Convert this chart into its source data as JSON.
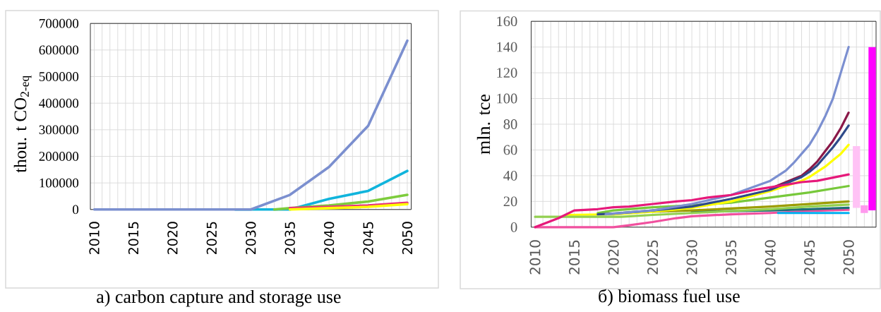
{
  "chart_data": [
    {
      "type": "line",
      "title": "a) carbon capture and storage use",
      "ylabel": "thou. t CO$_{2-eq}$",
      "xlim": [
        2009.5,
        2050.5
      ],
      "xticks": [
        2010,
        {
          "value": 2011,
          "label": null
        },
        {
          "value": 2012,
          "label": null
        },
        {
          "value": 2013,
          "label": null
        },
        {
          "value": 2014,
          "label": null
        },
        2015,
        {
          "value": 2016,
          "label": null
        },
        {
          "value": 2017,
          "label": null
        },
        {
          "value": 2018,
          "label": null
        },
        {
          "value": 2019,
          "label": null
        },
        2020,
        {
          "value": 2021,
          "label": null
        },
        {
          "value": 2022,
          "label": null
        },
        {
          "value": 2023,
          "label": null
        },
        {
          "value": 2024,
          "label": null
        },
        2025,
        {
          "value": 2026,
          "label": null
        },
        {
          "value": 2027,
          "label": null
        },
        {
          "value": 2028,
          "label": null
        },
        {
          "value": 2029,
          "label": null
        },
        2030,
        {
          "value": 2031,
          "label": null
        },
        {
          "value": 2032,
          "label": null
        },
        {
          "value": 2033,
          "label": null
        },
        {
          "value": 2034,
          "label": null
        },
        2035,
        {
          "value": 2036,
          "label": null
        },
        {
          "value": 2037,
          "label": null
        },
        {
          "value": 2038,
          "label": null
        },
        {
          "value": 2039,
          "label": null
        },
        2040,
        {
          "value": 2041,
          "label": null
        },
        {
          "value": 2042,
          "label": null
        },
        {
          "value": 2043,
          "label": null
        },
        {
          "value": 2044,
          "label": null
        },
        2045,
        {
          "value": 2046,
          "label": null
        },
        {
          "value": 2047,
          "label": null
        },
        {
          "value": 2048,
          "label": null
        },
        {
          "value": 2049,
          "label": null
        },
        2050
      ],
      "ylim": [
        0,
        700000
      ],
      "yticks": [
        0,
        100000,
        200000,
        300000,
        400000,
        500000,
        600000,
        700000
      ],
      "grid": true,
      "series": [
        {
          "color": "#10b4dc",
          "x": [
            2028,
            2030,
            2035,
            2040,
            2045,
            2050
          ],
          "values": [
            0,
            0,
            0,
            40000,
            70000,
            145000
          ]
        },
        {
          "color": "#7dcc3c",
          "x": [
            2033,
            2035,
            2040,
            2045,
            2050
          ],
          "values": [
            0,
            5000,
            15000,
            30000,
            55000
          ]
        },
        {
          "color": "#e8307a",
          "x": [
            2035,
            2040,
            2045,
            2050
          ],
          "values": [
            5000,
            10000,
            15000,
            25000
          ]
        },
        {
          "color": "#ffff00",
          "x": [
            2035,
            2040,
            2045,
            2050
          ],
          "values": [
            0,
            5000,
            10000,
            20000
          ]
        },
        {
          "color": "#7b8fcf",
          "x": [
            2010,
            2015,
            2020,
            2025,
            2030,
            2035,
            2040,
            2045,
            2050
          ],
          "values": [
            0,
            0,
            0,
            0,
            0,
            55000,
            160000,
            315000,
            635000
          ]
        }
      ]
    },
    {
      "type": "line",
      "title": "б) biomass fuel use",
      "ylabel": "mln. tce",
      "xlim": [
        2009.5,
        2053.5
      ],
      "xticks": [
        2010,
        {
          "value": 2011,
          "label": null
        },
        {
          "value": 2012,
          "label": null
        },
        {
          "value": 2013,
          "label": null
        },
        {
          "value": 2014,
          "label": null
        },
        2015,
        {
          "value": 2016,
          "label": null
        },
        {
          "value": 2017,
          "label": null
        },
        {
          "value": 2018,
          "label": null
        },
        {
          "value": 2019,
          "label": null
        },
        2020,
        {
          "value": 2021,
          "label": null
        },
        {
          "value": 2022,
          "label": null
        },
        {
          "value": 2023,
          "label": null
        },
        {
          "value": 2024,
          "label": null
        },
        2025,
        {
          "value": 2026,
          "label": null
        },
        {
          "value": 2027,
          "label": null
        },
        {
          "value": 2028,
          "label": null
        },
        {
          "value": 2029,
          "label": null
        },
        2030,
        {
          "value": 2031,
          "label": null
        },
        {
          "value": 2032,
          "label": null
        },
        {
          "value": 2033,
          "label": null
        },
        {
          "value": 2034,
          "label": null
        },
        2035,
        {
          "value": 2036,
          "label": null
        },
        {
          "value": 2037,
          "label": null
        },
        {
          "value": 2038,
          "label": null
        },
        {
          "value": 2039,
          "label": null
        },
        2040,
        {
          "value": 2041,
          "label": null
        },
        {
          "value": 2042,
          "label": null
        },
        {
          "value": 2043,
          "label": null
        },
        {
          "value": 2044,
          "label": null
        },
        2045,
        {
          "value": 2046,
          "label": null
        },
        {
          "value": 2047,
          "label": null
        },
        {
          "value": 2048,
          "label": null
        },
        {
          "value": 2049,
          "label": null
        },
        2050,
        {
          "value": 2051,
          "label": null
        },
        {
          "value": 2052,
          "label": null
        },
        {
          "value": 2053,
          "label": null
        }
      ],
      "ylim": [
        0,
        160
      ],
      "yticks": [
        0,
        20,
        40,
        60,
        80,
        100,
        120,
        140,
        160
      ],
      "grid": true,
      "series": [
        {
          "color": "#f0509e",
          "x": [
            2010,
            2020,
            2022,
            2025,
            2028,
            2030,
            2035,
            2040,
            2045,
            2050
          ],
          "values": [
            0,
            0,
            1.5,
            4,
            7,
            8.5,
            10,
            11,
            12.5,
            13.5
          ]
        },
        {
          "color": "#00b0f0",
          "x": [
            2041,
            2050
          ],
          "values": [
            11,
            11
          ]
        },
        {
          "color": "#1f6e78",
          "x": [
            2030,
            2040,
            2045,
            2050
          ],
          "values": [
            12,
            13,
            14,
            15
          ]
        },
        {
          "color": "#9c9c00",
          "x": [
            2025,
            2030,
            2035,
            2040,
            2045,
            2050
          ],
          "values": [
            12,
            13,
            14.5,
            16,
            18,
            20
          ]
        },
        {
          "color": "#77c83a",
          "x": [
            2018,
            2020,
            2025,
            2030,
            2035,
            2040,
            2045,
            2050
          ],
          "values": [
            11,
            13,
            15.5,
            17,
            19,
            23,
            27,
            32
          ]
        },
        {
          "color": "#ffff00",
          "x": [
            2014,
            2020,
            2025,
            2030,
            2035,
            2040,
            2042,
            2044,
            2045,
            2046,
            2047,
            2048,
            2049,
            2050
          ],
          "values": [
            9.5,
            10,
            12,
            15,
            20,
            28,
            32,
            36,
            39,
            43,
            47,
            52,
            57,
            64
          ]
        },
        {
          "color": "#8a1848",
          "x": [
            2040,
            2042,
            2044,
            2045,
            2046,
            2047,
            2048,
            2049,
            2050
          ],
          "values": [
            30,
            35,
            40,
            45,
            51,
            59,
            67,
            77,
            89
          ]
        },
        {
          "color": "#2e4a8a",
          "x": [
            2018,
            2020,
            2025,
            2030,
            2035,
            2040,
            2042,
            2044,
            2045,
            2046,
            2047,
            2048,
            2049,
            2050
          ],
          "values": [
            10,
            10.5,
            13,
            16,
            22,
            29,
            34,
            39,
            43,
            48,
            55,
            62,
            70,
            79
          ]
        },
        {
          "color": "#7b8fd0",
          "x": [
            2019,
            2020,
            2025,
            2030,
            2035,
            2040,
            2041,
            2042,
            2043,
            2044,
            2045,
            2046,
            2047,
            2048,
            2049,
            2050
          ],
          "values": [
            10,
            10.5,
            13,
            18,
            25,
            36,
            40,
            44,
            50,
            57,
            64,
            74,
            86,
            100,
            120,
            140
          ]
        },
        {
          "color": "#92d050",
          "x": [
            2010,
            2021,
            2025,
            2030,
            2035,
            2040,
            2045,
            2050
          ],
          "values": [
            8,
            8,
            9.5,
            11,
            12.5,
            14,
            16,
            17.5
          ]
        },
        {
          "color": "#e6197a",
          "x": [
            2010,
            2013,
            2015,
            2018,
            2020,
            2022,
            2025,
            2028,
            2030,
            2032,
            2035,
            2038,
            2040,
            2042,
            2044,
            2046,
            2048,
            2050
          ],
          "values": [
            0,
            7,
            13,
            14,
            15.5,
            16,
            18,
            20,
            21,
            23,
            25,
            29,
            31,
            33,
            35,
            36,
            38.5,
            41
          ]
        },
        {
          "type": "bar",
          "x": [
            2051,
            2052,
            2053
          ],
          "base": [
            15,
            11,
            13
          ],
          "values": [
            48,
            6,
            127
          ],
          "colors": [
            "#ffc2f5",
            "#ff99ee",
            "#ff00ff"
          ]
        }
      ]
    }
  ]
}
